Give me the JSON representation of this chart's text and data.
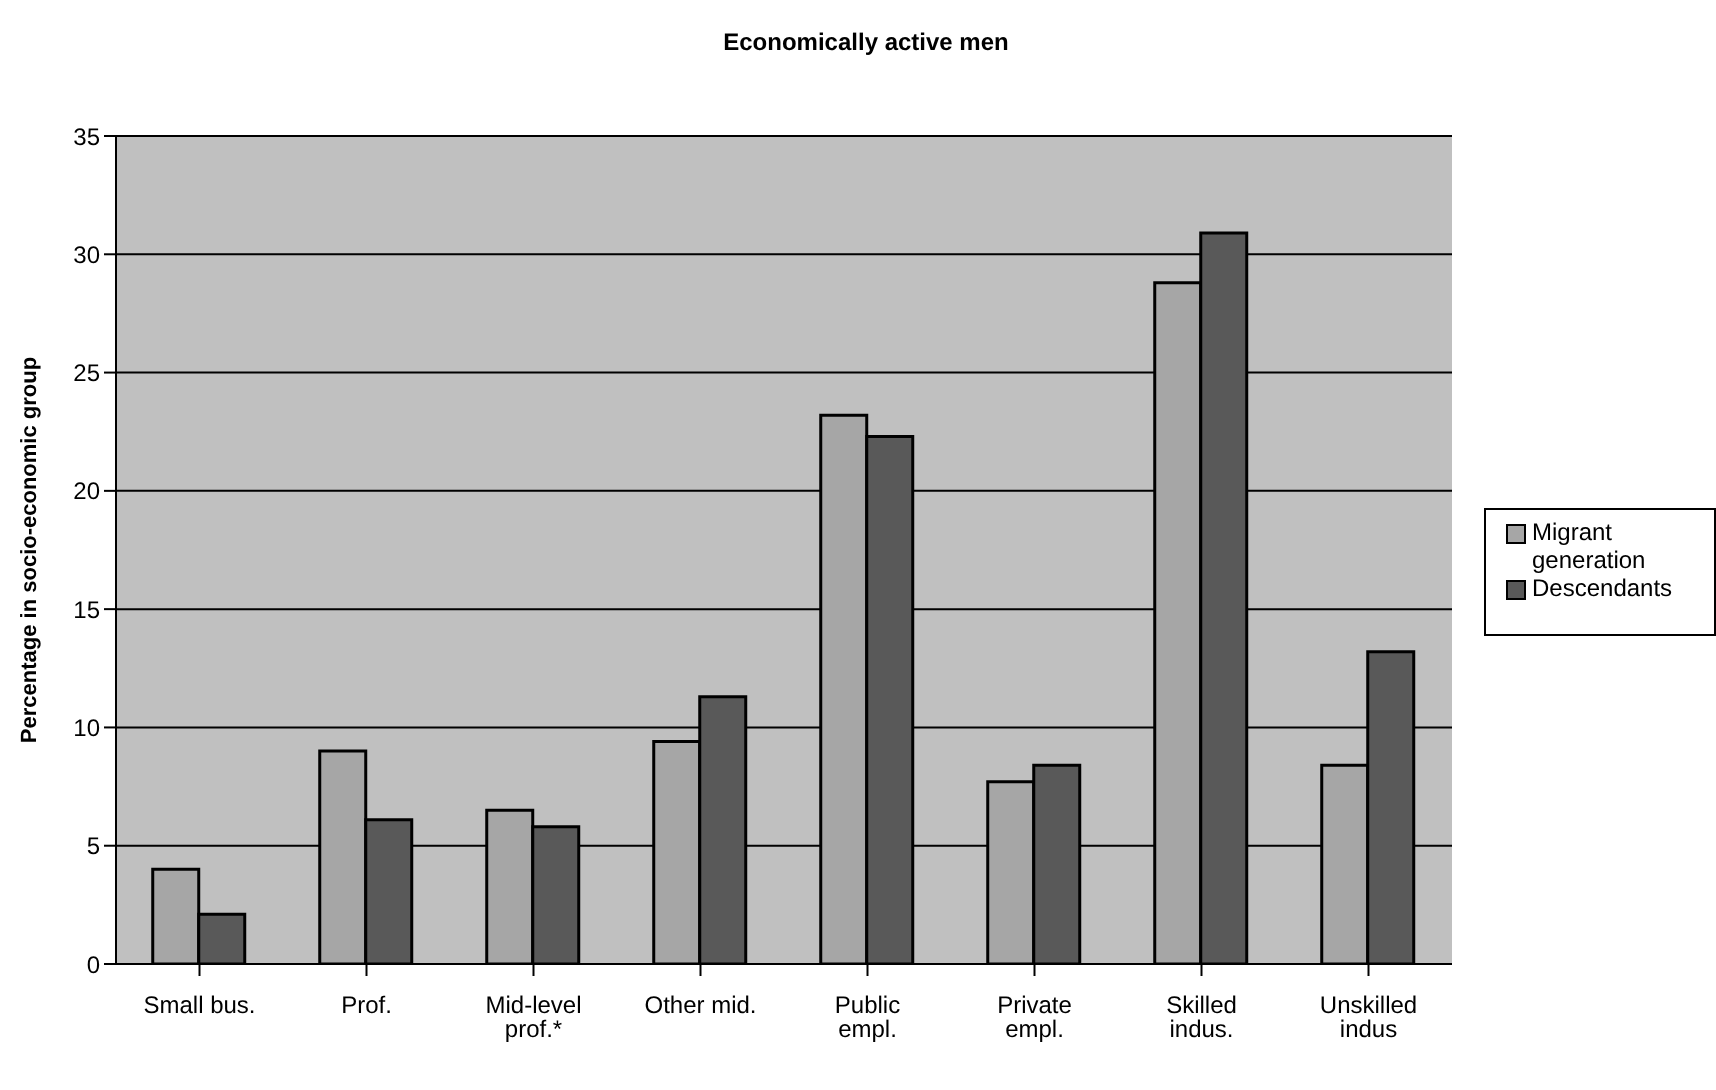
{
  "chart_data": {
    "type": "bar",
    "title": "Economically active men",
    "ylabel": "Percentage in socio-economic group",
    "categories": [
      "Small bus.",
      "Prof.",
      "Mid-level prof.*",
      "Other mid.",
      "Public empl.",
      "Private empl.",
      "Skilled indus.",
      "Unskilled indus"
    ],
    "series": [
      {
        "name": "Migrant generation",
        "color": "#a6a6a6",
        "values": [
          4.0,
          9.0,
          6.5,
          9.4,
          23.2,
          7.7,
          28.8,
          8.4
        ]
      },
      {
        "name": "Descendants",
        "color": "#595959",
        "values": [
          2.1,
          6.1,
          5.8,
          11.3,
          22.3,
          8.4,
          30.9,
          13.2
        ]
      }
    ],
    "ylim": [
      0,
      35
    ],
    "yticks": [
      0,
      5,
      10,
      15,
      20,
      25,
      30,
      35
    ],
    "grid": "y",
    "legend": "right"
  }
}
